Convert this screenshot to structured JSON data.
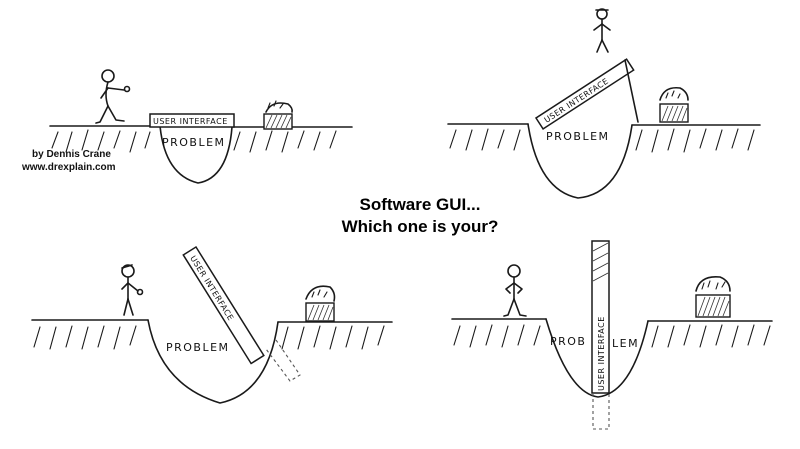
{
  "credit": {
    "author": "by Dennis Crane",
    "website": "www.drexplain.com"
  },
  "headline": {
    "line1": "Software GUI...",
    "line2": "Which one is your?"
  },
  "panels": [
    {
      "plank_text": "USER INTERFACE",
      "pit_text": "PROBLEM"
    },
    {
      "plank_text": "USER INTERFACE",
      "pit_text": "PROBLEM"
    },
    {
      "plank_text": "USER INTERFACE",
      "pit_text": "PROBLEM"
    },
    {
      "plank_text": "USER INTERFACE",
      "pit_text_left": "PROB",
      "pit_text_right": "LEM"
    }
  ]
}
